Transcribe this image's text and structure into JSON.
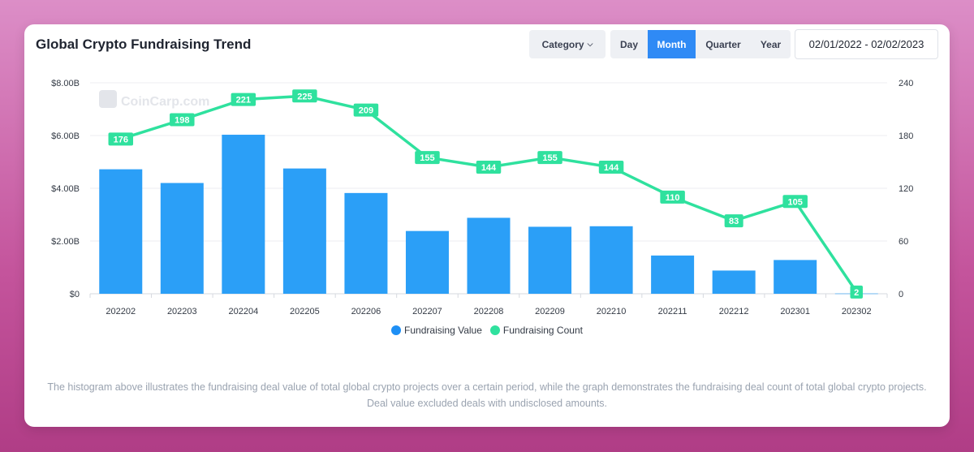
{
  "header": {
    "title": "Global Crypto Fundraising Trend",
    "category_label": "Category",
    "periods": [
      "Day",
      "Month",
      "Quarter",
      "Year"
    ],
    "active_period": "Month",
    "date_range": "02/01/2022 - 02/02/2023"
  },
  "watermark": "CoinCarp.com",
  "colors": {
    "bar": "#2b9ff7",
    "line": "#2fe19e",
    "legend_value": "#1e8ff5",
    "legend_count": "#2fe19e",
    "active_tab": "#2f8af5"
  },
  "chart_data": {
    "type": "bar+line",
    "categories": [
      "202202",
      "202203",
      "202204",
      "202205",
      "202206",
      "202207",
      "202208",
      "202209",
      "202210",
      "202211",
      "202212",
      "202301",
      "202302"
    ],
    "series": [
      {
        "name": "Fundraising Value",
        "type": "bar",
        "axis": "left",
        "values": [
          4.72,
          4.2,
          6.03,
          4.75,
          3.82,
          2.38,
          2.88,
          2.54,
          2.56,
          1.45,
          0.88,
          1.28,
          0.01
        ]
      },
      {
        "name": "Fundraising Count",
        "type": "line",
        "axis": "right",
        "values": [
          176,
          198,
          221,
          225,
          209,
          155,
          144,
          155,
          144,
          110,
          83,
          105,
          2
        ]
      }
    ],
    "y_left": {
      "ticks": [
        "$0",
        "$2.00B",
        "$4.00B",
        "$6.00B",
        "$8.00B"
      ],
      "range": [
        0,
        8
      ],
      "unit": "B USD"
    },
    "y_right": {
      "ticks": [
        "0",
        "60",
        "120",
        "180",
        "240"
      ],
      "range": [
        0,
        240
      ]
    },
    "legend": [
      "Fundraising Value",
      "Fundraising Count"
    ]
  },
  "footnote": "The histogram above illustrates the fundraising deal value of total global crypto projects over a certain period, while the graph demonstrates the fundraising deal count of total global crypto projects. Deal value excluded deals with undisclosed amounts."
}
